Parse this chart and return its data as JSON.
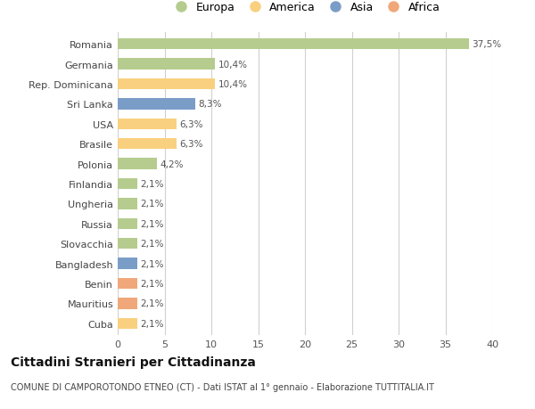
{
  "countries": [
    "Romania",
    "Germania",
    "Rep. Dominicana",
    "Sri Lanka",
    "USA",
    "Brasile",
    "Polonia",
    "Finlandia",
    "Ungheria",
    "Russia",
    "Slovacchia",
    "Bangladesh",
    "Benin",
    "Mauritius",
    "Cuba"
  ],
  "values": [
    37.5,
    10.4,
    10.4,
    8.3,
    6.3,
    6.3,
    4.2,
    2.1,
    2.1,
    2.1,
    2.1,
    2.1,
    2.1,
    2.1,
    2.1
  ],
  "labels": [
    "37,5%",
    "10,4%",
    "10,4%",
    "8,3%",
    "6,3%",
    "6,3%",
    "4,2%",
    "2,1%",
    "2,1%",
    "2,1%",
    "2,1%",
    "2,1%",
    "2,1%",
    "2,1%",
    "2,1%"
  ],
  "continents": [
    "Europa",
    "Europa",
    "America",
    "Asia",
    "America",
    "America",
    "Europa",
    "Europa",
    "Europa",
    "Europa",
    "Europa",
    "Asia",
    "Africa",
    "Africa",
    "America"
  ],
  "colors": {
    "Europa": "#b5cc8e",
    "America": "#f9d07f",
    "Asia": "#7a9dc8",
    "Africa": "#f0a87a"
  },
  "legend_order": [
    "Europa",
    "America",
    "Asia",
    "Africa"
  ],
  "title": "Cittadini Stranieri per Cittadinanza",
  "subtitle": "COMUNE DI CAMPOROTONDO ETNEO (CT) - Dati ISTAT al 1° gennaio - Elaborazione TUTTITALIA.IT",
  "xlim": [
    0,
    40
  ],
  "xticks": [
    0,
    5,
    10,
    15,
    20,
    25,
    30,
    35,
    40
  ],
  "background_color": "#ffffff",
  "grid_color": "#d0d0d0"
}
